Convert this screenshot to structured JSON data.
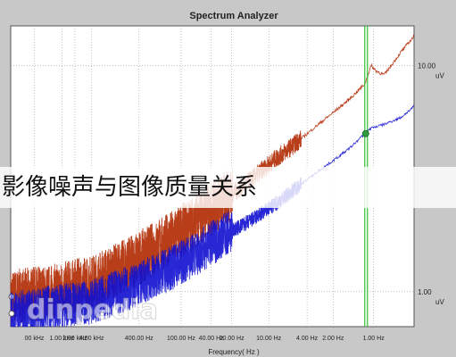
{
  "overlay_caption": "影像噪声与图像质量关系",
  "watermark": "dinpedia",
  "colors": {
    "frame_bg": "#c8c8c8",
    "plot_bg": "#ffffff",
    "grid": "#9a9a9a",
    "series_noisy_a": "#b02800",
    "series_noisy_b": "#1010d0",
    "cursor": "#30c030",
    "cursor_marker": "#2e9e3e"
  },
  "chart_data": {
    "type": "line",
    "title": "Spectrum Analyzer",
    "xlabel": "Frequency( Hz )",
    "ylabel": "",
    "x_scale": "log",
    "y_scale": "log",
    "xlim": [
      1,
      1000
    ],
    "ylim": [
      0.7,
      15
    ],
    "y_ticks": [
      {
        "value": 10,
        "label": "10.00",
        "unit": "uV"
      },
      {
        "value": 1,
        "label": "1.00",
        "unit": "uV"
      }
    ],
    "x_tick_labels": [
      "00 kHz",
      "1.00 kHz",
      "2.00 kHz",
      "4.00 kHz",
      "400.00 Hz",
      "100.00 Hz",
      "40.00 Hz",
      "20.00 Hz",
      "10.00 Hz",
      "4.00 Hz",
      "2.00 Hz",
      "1.00 Hz"
    ],
    "x_tick_values": [
      1.5,
      2.4,
      3.0,
      4.0,
      9.0,
      18.5,
      31,
      44,
      83,
      160,
      250,
      500
    ],
    "grid": true,
    "legend": "none",
    "cursor_x": 430,
    "series": [
      {
        "x": [
          1,
          2,
          4,
          8,
          15,
          25,
          40,
          60,
          90,
          130,
          180,
          250,
          330,
          430,
          480,
          520,
          600,
          800,
          1000
        ],
        "values": [
          0.95,
          1.0,
          1.1,
          1.35,
          1.7,
          2.1,
          2.6,
          3.1,
          3.8,
          4.5,
          5.3,
          6.2,
          7.1,
          8.3,
          10.0,
          9.5,
          9.1,
          11.5,
          13.5
        ]
      },
      {
        "x": [
          1,
          2,
          4,
          8,
          15,
          25,
          40,
          60,
          90,
          130,
          180,
          250,
          330,
          430,
          480,
          600,
          800,
          1000
        ],
        "values": [
          0.8,
          0.85,
          0.9,
          1.05,
          1.25,
          1.5,
          1.8,
          2.05,
          2.4,
          2.85,
          3.3,
          3.8,
          4.3,
          5.0,
          5.3,
          5.5,
          5.9,
          6.6
        ]
      }
    ]
  }
}
